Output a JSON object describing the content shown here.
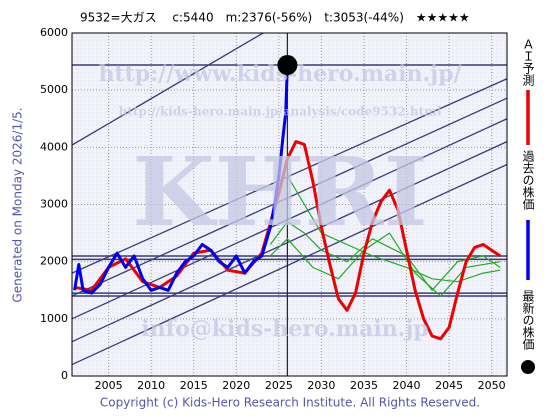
{
  "chart_data": {
    "type": "line",
    "title": "9532=大ガス　 c:5440　m:2376(-56%)　t:3053(-44%)　★★★★★",
    "side_text": "Generated on Monday 2026/1/5.",
    "footer": "Copyright (c) Kids-Hero Research Institute. All Rights Reserved.",
    "watermarks": [
      "http://www.kids-hero.main.jp/",
      "http://kids-hero.main.jp/analysis/code9532.html",
      "KHRI",
      "info@kids-hero.main.jp"
    ],
    "xlim": [
      2000.7,
      2051.8
    ],
    "ylim": [
      0,
      6000
    ],
    "xticks": [
      2005,
      2010,
      2015,
      2020,
      2025,
      2030,
      2035,
      2040,
      2045,
      2050
    ],
    "yticks": [
      0,
      1000,
      2000,
      3000,
      4000,
      5000,
      6000
    ],
    "grid": true,
    "series": [
      {
        "name": "ＡＩ予測",
        "color": "#ee0000",
        "marker": "line",
        "x": [
          2001,
          2003,
          2005,
          2007,
          2009,
          2011,
          2013,
          2015,
          2017,
          2019,
          2021,
          2023,
          2025,
          2026,
          2027,
          2028,
          2029,
          2030,
          2031,
          2032,
          2033,
          2034,
          2035,
          2036,
          2037,
          2038,
          2039,
          2040,
          2041,
          2042,
          2043,
          2044,
          2045,
          2046,
          2047,
          2048,
          2049,
          2050,
          2051
        ],
        "values": [
          1550,
          1500,
          1900,
          2050,
          1650,
          1550,
          1750,
          2150,
          2200,
          1850,
          1800,
          2150,
          3200,
          3800,
          4100,
          4050,
          3400,
          2600,
          1950,
          1350,
          1150,
          1450,
          2150,
          2700,
          3050,
          3250,
          2900,
          2200,
          1500,
          1000,
          700,
          650,
          850,
          1450,
          2000,
          2250,
          2300,
          2200,
          2100
        ]
      },
      {
        "name": "過去の株価",
        "color": "#0000ee",
        "marker": "line",
        "x": [
          2001,
          2001.5,
          2002,
          2003,
          2004,
          2005,
          2006,
          2007,
          2008,
          2009,
          2010,
          2011,
          2012,
          2013,
          2014,
          2015,
          2016,
          2017,
          2018,
          2019,
          2020,
          2021,
          2022,
          2023,
          2024,
          2024.5,
          2025,
          2025.5,
          2025.8,
          2026
        ],
        "values": [
          1500,
          1950,
          1500,
          1450,
          1600,
          1900,
          2150,
          1900,
          2100,
          1700,
          1500,
          1550,
          1500,
          1800,
          2000,
          2100,
          2300,
          2200,
          2000,
          1900,
          2100,
          1800,
          2000,
          2100,
          2600,
          3000,
          3500,
          4200,
          4600,
          5440
        ]
      },
      {
        "name": "最新の株価",
        "color": "#000000",
        "marker": "dot",
        "x": [
          2026
        ],
        "values": [
          5440
        ]
      }
    ],
    "forecast_bands": [
      {
        "color": "#22aa22",
        "x": [
          2026,
          2028,
          2030,
          2033,
          2036,
          2040,
          2043,
          2046,
          2049,
          2051
        ],
        "values": [
          3500,
          3000,
          2500,
          2300,
          2100,
          1900,
          1700,
          1650,
          1800,
          1850
        ]
      },
      {
        "color": "#22aa22",
        "x": [
          2024,
          2026,
          2028,
          2030,
          2033,
          2036,
          2040,
          2043,
          2046,
          2049,
          2051
        ],
        "values": [
          2300,
          2700,
          2500,
          2200,
          2000,
          2400,
          2100,
          1500,
          2000,
          2100,
          1900
        ]
      },
      {
        "color": "#22aa22",
        "x": [
          2024,
          2026,
          2029,
          2032,
          2035,
          2038,
          2041,
          2044,
          2047,
          2051
        ],
        "values": [
          2100,
          2400,
          1900,
          1700,
          2200,
          2500,
          1800,
          1400,
          1900,
          2000
        ]
      }
    ],
    "trend_lines": [
      {
        "color": "#3a3a7a",
        "values": [
          4040,
          8500
        ]
      },
      {
        "color": "#3a3a7a",
        "values": [
          1800,
          5200
        ]
      },
      {
        "color": "#3a3a7a",
        "values": [
          1400,
          4860
        ]
      },
      {
        "color": "#3a3a7a",
        "values": [
          1000,
          4500
        ]
      },
      {
        "color": "#3a3a7a",
        "values": [
          600,
          4100
        ]
      },
      {
        "color": "#3a3a7a",
        "values": [
          200,
          3700
        ]
      }
    ],
    "levels": [
      {
        "color": "#3a3a7a",
        "value": 5440
      },
      {
        "color": "#3a3a7a",
        "value": 2100
      },
      {
        "color": "#3a3a7a",
        "value": 2040
      },
      {
        "color": "#3a3a7a",
        "value": 1450
      },
      {
        "color": "#3a3a7a",
        "value": 1400
      }
    ],
    "latest_x": 2026
  }
}
